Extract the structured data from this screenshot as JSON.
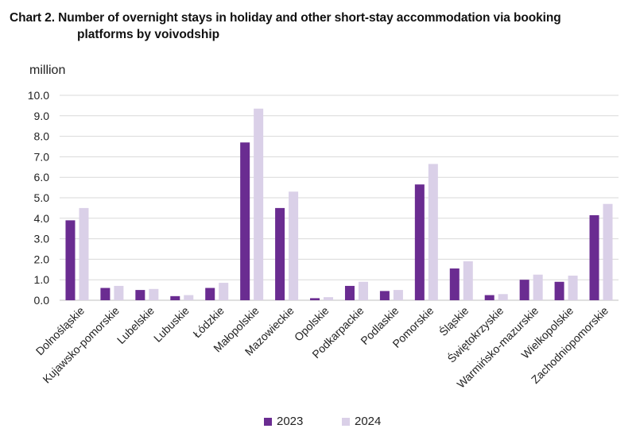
{
  "chart_data": {
    "type": "bar",
    "title": "Chart 2. Number of overnight stays in holiday and other short-stay accommodation via booking",
    "title_cont": "platforms by voivodship",
    "ylabel": "million",
    "ylim": [
      0,
      10
    ],
    "yticks": [
      "0.0",
      "1.0",
      "2.0",
      "3.0",
      "4.0",
      "5.0",
      "6.0",
      "7.0",
      "8.0",
      "9.0",
      "10.0"
    ],
    "grid": true,
    "legend_position": "bottom",
    "categories": [
      "Dolnośląskie",
      "Kujawsko-pomorskie",
      "Lubelskie",
      "Lubuskie",
      "Łódzkie",
      "Małopolskie",
      "Mazowieckie",
      "Opolskie",
      "Podkarpackie",
      "Podlaskie",
      "Pomorskie",
      "Śląskie",
      "Świętokrzyskie",
      "Warmińsko-mazurskie",
      "Wielkopolskie",
      "Zachodniopomorskie"
    ],
    "series": [
      {
        "name": "2023",
        "color": "#6a2c91",
        "values": [
          3.9,
          0.6,
          0.5,
          0.2,
          0.6,
          7.7,
          4.5,
          0.1,
          0.7,
          0.45,
          5.65,
          1.55,
          0.25,
          1.0,
          0.9,
          4.15
        ]
      },
      {
        "name": "2024",
        "color": "#dad0e8",
        "values": [
          4.5,
          0.7,
          0.55,
          0.25,
          0.85,
          9.35,
          5.3,
          0.15,
          0.9,
          0.5,
          6.65,
          1.9,
          0.3,
          1.25,
          1.2,
          4.7
        ]
      }
    ]
  }
}
